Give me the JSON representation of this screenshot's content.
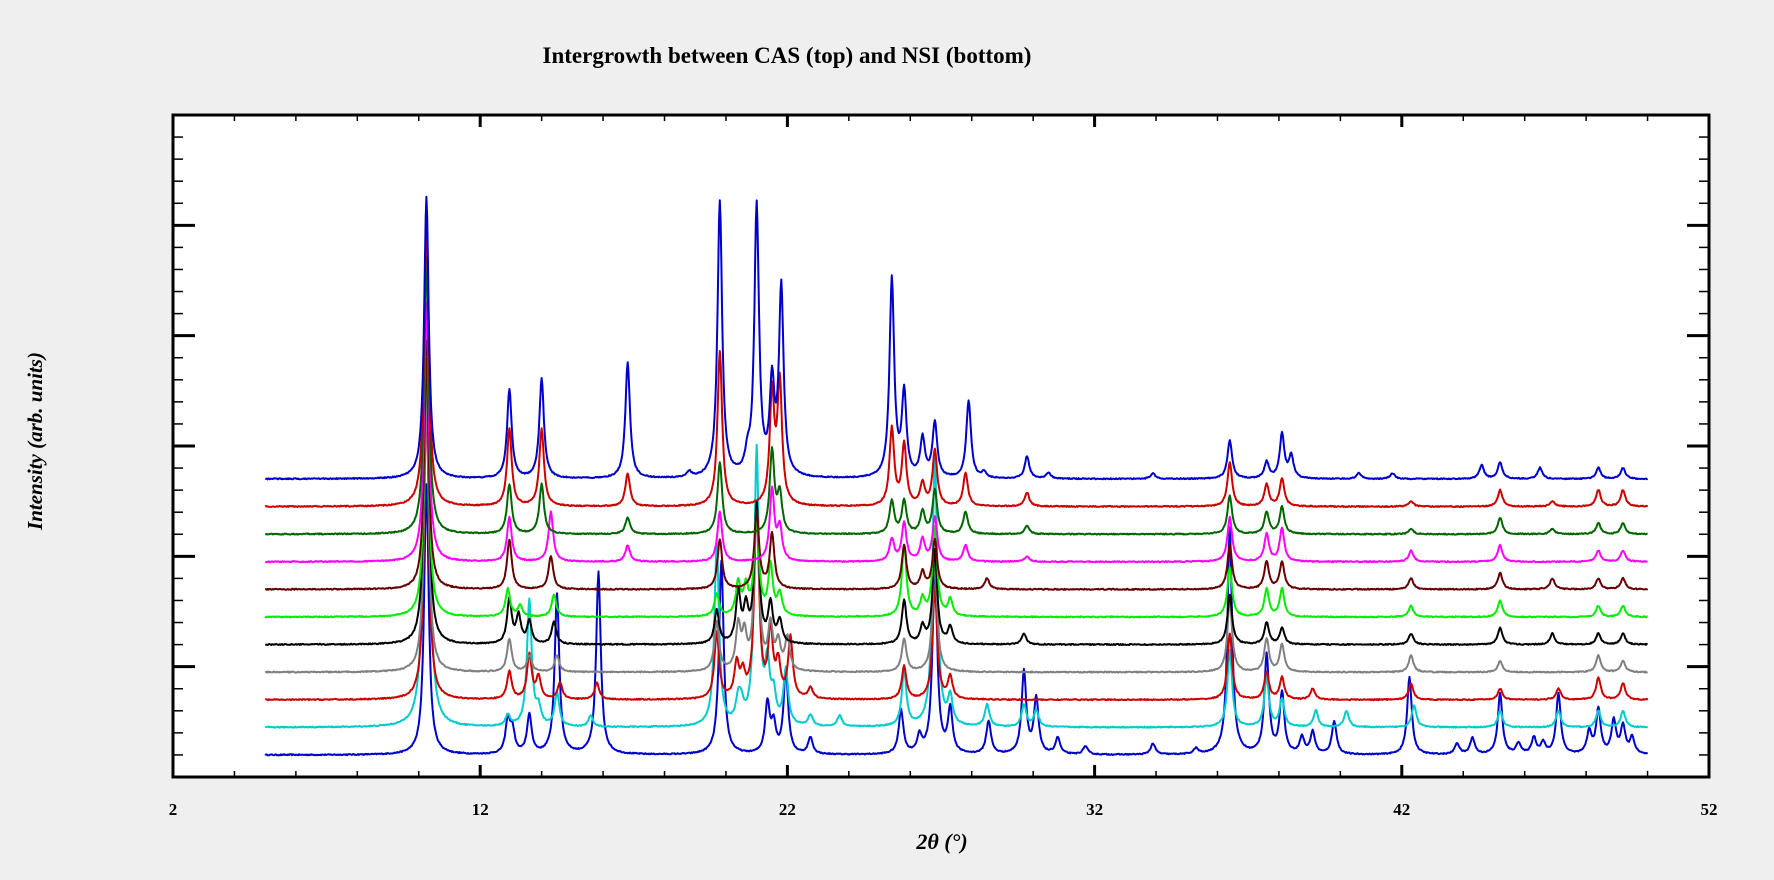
{
  "chart_data": {
    "type": "line",
    "title": "Intergrowth between CAS (top) and NSI (bottom)",
    "xlabel": "2θ (°)",
    "ylabel": "Intensity (arb. units)",
    "xlim": [
      2,
      52
    ],
    "x_ticks": [
      "2",
      "12",
      "22",
      "32",
      "42",
      "52"
    ],
    "x_range_data": [
      5,
      50
    ],
    "y_ticks_count": 6,
    "grid": false,
    "legend": "none",
    "peak_width": 0.09,
    "series": [
      {
        "color": "#0000cc",
        "baseline": 0,
        "noise": 0.02,
        "peaks": [
          [
            10.25,
            4.9
          ],
          [
            12.9,
            0.6
          ],
          [
            13.05,
            0.4
          ],
          [
            13.6,
            0.7
          ],
          [
            14.5,
            2.9
          ],
          [
            15.85,
            3.3
          ],
          [
            19.85,
            3.5
          ],
          [
            21.35,
            0.9
          ],
          [
            21.55,
            0.5
          ],
          [
            21.95,
            1.5
          ],
          [
            22.75,
            0.3
          ],
          [
            25.7,
            0.8
          ],
          [
            26.3,
            0.3
          ],
          [
            26.8,
            3.5
          ],
          [
            27.3,
            0.8
          ],
          [
            28.55,
            0.6
          ],
          [
            29.7,
            1.5
          ],
          [
            30.1,
            1.0
          ],
          [
            30.8,
            0.3
          ],
          [
            31.7,
            0.15
          ],
          [
            33.9,
            0.2
          ],
          [
            35.3,
            0.1
          ],
          [
            36.4,
            4.1
          ],
          [
            37.6,
            1.8
          ],
          [
            38.1,
            1.1
          ],
          [
            38.75,
            0.3
          ],
          [
            39.1,
            0.4
          ],
          [
            39.8,
            0.6
          ],
          [
            42.25,
            1.4
          ],
          [
            43.8,
            0.2
          ],
          [
            44.3,
            0.3
          ],
          [
            45.2,
            1.1
          ],
          [
            45.8,
            0.2
          ],
          [
            46.3,
            0.3
          ],
          [
            46.6,
            0.2
          ],
          [
            47.1,
            1.1
          ],
          [
            48.1,
            0.4
          ],
          [
            48.4,
            0.8
          ],
          [
            48.9,
            0.6
          ],
          [
            49.2,
            0.5
          ],
          [
            49.5,
            0.3
          ]
        ]
      },
      {
        "color": "#00cccc",
        "baseline": 0.5,
        "noise": 0.02,
        "peaks": [
          [
            10.25,
            9.5
          ],
          [
            12.9,
            0.2
          ],
          [
            13.6,
            2.3
          ],
          [
            13.9,
            0.3
          ],
          [
            14.5,
            0.6
          ],
          [
            15.6,
            0.2
          ],
          [
            19.7,
            3.3
          ],
          [
            20.4,
            0.4
          ],
          [
            20.5,
            0.3
          ],
          [
            21.0,
            5.0
          ],
          [
            21.35,
            1.0
          ],
          [
            21.55,
            0.5
          ],
          [
            21.95,
            1.0
          ],
          [
            22.75,
            0.2
          ],
          [
            23.7,
            0.2
          ],
          [
            25.8,
            1.0
          ],
          [
            26.8,
            5.0
          ],
          [
            27.3,
            0.5
          ],
          [
            28.5,
            0.4
          ],
          [
            29.7,
            0.4
          ],
          [
            30.1,
            0.3
          ],
          [
            36.4,
            1.4
          ],
          [
            37.6,
            0.9
          ],
          [
            38.1,
            0.5
          ],
          [
            39.2,
            0.3
          ],
          [
            40.2,
            0.3
          ],
          [
            42.4,
            0.4
          ],
          [
            45.2,
            0.3
          ],
          [
            47.1,
            0.3
          ],
          [
            48.4,
            0.3
          ],
          [
            49.2,
            0.3
          ]
        ]
      },
      {
        "color": "#cc0000",
        "baseline": 1.0,
        "noise": 0.02,
        "peaks": [
          [
            10.25,
            5.5
          ],
          [
            12.95,
            0.5
          ],
          [
            13.6,
            0.8
          ],
          [
            13.9,
            0.4
          ],
          [
            14.6,
            0.3
          ],
          [
            15.8,
            0.3
          ],
          [
            19.7,
            1.2
          ],
          [
            20.35,
            0.6
          ],
          [
            20.55,
            0.4
          ],
          [
            21.0,
            3.5
          ],
          [
            21.45,
            1.2
          ],
          [
            21.7,
            0.6
          ],
          [
            22.1,
            1.1
          ],
          [
            22.75,
            0.2
          ],
          [
            25.8,
            0.6
          ],
          [
            26.8,
            2.0
          ],
          [
            27.3,
            0.4
          ],
          [
            36.4,
            1.2
          ],
          [
            37.6,
            0.5
          ],
          [
            38.1,
            0.4
          ],
          [
            39.1,
            0.2
          ],
          [
            42.3,
            0.3
          ],
          [
            45.2,
            0.2
          ],
          [
            47.1,
            0.2
          ],
          [
            48.4,
            0.4
          ],
          [
            49.2,
            0.3
          ]
        ]
      },
      {
        "color": "#808080",
        "baseline": 1.5,
        "noise": 0.02,
        "peaks": [
          [
            10.25,
            5.0
          ],
          [
            12.95,
            0.6
          ],
          [
            13.6,
            0.3
          ],
          [
            14.5,
            0.3
          ],
          [
            19.7,
            0.9
          ],
          [
            20.4,
            0.8
          ],
          [
            20.6,
            0.6
          ],
          [
            21.0,
            3.0
          ],
          [
            21.45,
            0.8
          ],
          [
            21.7,
            0.5
          ],
          [
            22.0,
            0.6
          ],
          [
            25.8,
            0.6
          ],
          [
            26.8,
            2.0
          ],
          [
            36.4,
            1.3
          ],
          [
            37.6,
            0.6
          ],
          [
            38.1,
            0.5
          ],
          [
            42.3,
            0.3
          ],
          [
            45.2,
            0.2
          ],
          [
            48.4,
            0.3
          ],
          [
            49.2,
            0.2
          ]
        ]
      },
      {
        "color": "#000000",
        "baseline": 2.0,
        "noise": 0.02,
        "peaks": [
          [
            10.25,
            5.5
          ],
          [
            12.95,
            0.8
          ],
          [
            13.25,
            0.5
          ],
          [
            13.6,
            0.4
          ],
          [
            14.4,
            0.4
          ],
          [
            19.7,
            0.6
          ],
          [
            20.4,
            0.9
          ],
          [
            20.65,
            0.6
          ],
          [
            21.0,
            2.5
          ],
          [
            21.45,
            0.7
          ],
          [
            21.75,
            0.4
          ],
          [
            25.8,
            0.8
          ],
          [
            26.4,
            0.3
          ],
          [
            26.8,
            1.7
          ],
          [
            27.3,
            0.3
          ],
          [
            29.7,
            0.2
          ],
          [
            36.4,
            0.9
          ],
          [
            37.6,
            0.4
          ],
          [
            38.1,
            0.3
          ],
          [
            42.3,
            0.2
          ],
          [
            45.2,
            0.3
          ],
          [
            46.9,
            0.2
          ],
          [
            48.4,
            0.2
          ],
          [
            49.2,
            0.2
          ]
        ]
      },
      {
        "color": "#00ee00",
        "baseline": 2.5,
        "noise": 0.02,
        "peaks": [
          [
            10.25,
            4.7
          ],
          [
            12.9,
            0.5
          ],
          [
            13.3,
            0.2
          ],
          [
            14.4,
            0.4
          ],
          [
            19.7,
            0.4
          ],
          [
            20.4,
            0.6
          ],
          [
            20.65,
            0.5
          ],
          [
            21.0,
            1.8
          ],
          [
            21.45,
            0.9
          ],
          [
            21.75,
            0.4
          ],
          [
            25.8,
            1.3
          ],
          [
            26.4,
            0.3
          ],
          [
            26.8,
            1.6
          ],
          [
            27.3,
            0.3
          ],
          [
            36.4,
            0.9
          ],
          [
            37.6,
            0.5
          ],
          [
            38.1,
            0.5
          ],
          [
            42.3,
            0.2
          ],
          [
            45.2,
            0.3
          ],
          [
            48.4,
            0.2
          ],
          [
            49.2,
            0.2
          ]
        ]
      },
      {
        "color": "#660000",
        "baseline": 3.0,
        "noise": 0.02,
        "peaks": [
          [
            10.25,
            4.2
          ],
          [
            12.95,
            0.9
          ],
          [
            14.3,
            0.6
          ],
          [
            19.8,
            0.9
          ],
          [
            21.0,
            1.4
          ],
          [
            21.5,
            1.0
          ],
          [
            25.8,
            0.8
          ],
          [
            26.4,
            0.3
          ],
          [
            26.8,
            0.9
          ],
          [
            28.5,
            0.2
          ],
          [
            36.4,
            0.8
          ],
          [
            37.6,
            0.5
          ],
          [
            38.1,
            0.5
          ],
          [
            42.3,
            0.2
          ],
          [
            45.2,
            0.3
          ],
          [
            46.9,
            0.2
          ],
          [
            48.4,
            0.2
          ],
          [
            49.2,
            0.2
          ]
        ]
      },
      {
        "color": "#ff00ff",
        "baseline": 3.5,
        "noise": 0.02,
        "peaks": [
          [
            10.25,
            4.7
          ],
          [
            12.95,
            0.8
          ],
          [
            14.3,
            0.9
          ],
          [
            16.8,
            0.3
          ],
          [
            19.8,
            0.9
          ],
          [
            21.5,
            1.3
          ],
          [
            21.75,
            0.6
          ],
          [
            25.4,
            0.4
          ],
          [
            25.8,
            0.7
          ],
          [
            26.4,
            0.4
          ],
          [
            26.8,
            0.8
          ],
          [
            27.8,
            0.3
          ],
          [
            29.8,
            0.1
          ],
          [
            36.4,
            0.8
          ],
          [
            37.6,
            0.5
          ],
          [
            38.1,
            0.6
          ],
          [
            42.3,
            0.2
          ],
          [
            45.2,
            0.3
          ],
          [
            48.4,
            0.2
          ],
          [
            49.2,
            0.2
          ]
        ]
      },
      {
        "color": "#006600",
        "baseline": 4.0,
        "noise": 0.02,
        "peaks": [
          [
            10.25,
            5.0
          ],
          [
            12.95,
            0.9
          ],
          [
            14.0,
            0.9
          ],
          [
            16.8,
            0.3
          ],
          [
            19.8,
            1.3
          ],
          [
            21.5,
            1.5
          ],
          [
            21.75,
            0.7
          ],
          [
            25.4,
            0.6
          ],
          [
            25.8,
            0.6
          ],
          [
            26.4,
            0.4
          ],
          [
            26.8,
            0.8
          ],
          [
            27.8,
            0.4
          ],
          [
            29.8,
            0.15
          ],
          [
            36.4,
            0.7
          ],
          [
            37.6,
            0.4
          ],
          [
            38.1,
            0.5
          ],
          [
            42.3,
            0.1
          ],
          [
            45.2,
            0.3
          ],
          [
            46.9,
            0.1
          ],
          [
            48.4,
            0.2
          ],
          [
            49.2,
            0.2
          ]
        ]
      },
      {
        "color": "#cc0000",
        "baseline": 4.5,
        "noise": 0.02,
        "peaks": [
          [
            10.25,
            5.3
          ],
          [
            12.95,
            1.4
          ],
          [
            14.0,
            1.4
          ],
          [
            16.8,
            0.6
          ],
          [
            19.8,
            2.8
          ],
          [
            21.5,
            2.0
          ],
          [
            21.75,
            2.2
          ],
          [
            25.4,
            1.4
          ],
          [
            25.8,
            1.1
          ],
          [
            26.4,
            0.4
          ],
          [
            26.8,
            1.0
          ],
          [
            27.8,
            0.6
          ],
          [
            29.8,
            0.25
          ],
          [
            36.4,
            0.8
          ],
          [
            37.6,
            0.4
          ],
          [
            38.1,
            0.5
          ],
          [
            42.3,
            0.1
          ],
          [
            45.2,
            0.3
          ],
          [
            46.9,
            0.1
          ],
          [
            48.4,
            0.3
          ],
          [
            49.2,
            0.3
          ]
        ]
      },
      {
        "color": "#0000cc",
        "baseline": 5.0,
        "noise": 0.02,
        "peaks": [
          [
            10.25,
            5.1
          ],
          [
            12.95,
            1.6
          ],
          [
            14.0,
            1.8
          ],
          [
            16.8,
            2.1
          ],
          [
            18.8,
            0.1
          ],
          [
            19.8,
            5.0
          ],
          [
            20.7,
            0.3
          ],
          [
            21.0,
            4.9
          ],
          [
            21.5,
            1.6
          ],
          [
            21.8,
            3.4
          ],
          [
            25.4,
            3.6
          ],
          [
            25.8,
            1.5
          ],
          [
            26.4,
            0.7
          ],
          [
            26.8,
            1.0
          ],
          [
            27.9,
            1.4
          ],
          [
            28.4,
            0.1
          ],
          [
            29.8,
            0.4
          ],
          [
            30.5,
            0.1
          ],
          [
            33.9,
            0.1
          ],
          [
            36.4,
            0.7
          ],
          [
            37.6,
            0.3
          ],
          [
            38.1,
            0.8
          ],
          [
            38.4,
            0.4
          ],
          [
            40.6,
            0.1
          ],
          [
            41.7,
            0.1
          ],
          [
            44.6,
            0.25
          ],
          [
            45.2,
            0.3
          ],
          [
            46.5,
            0.2
          ],
          [
            48.4,
            0.2
          ],
          [
            49.2,
            0.2
          ]
        ]
      }
    ]
  }
}
